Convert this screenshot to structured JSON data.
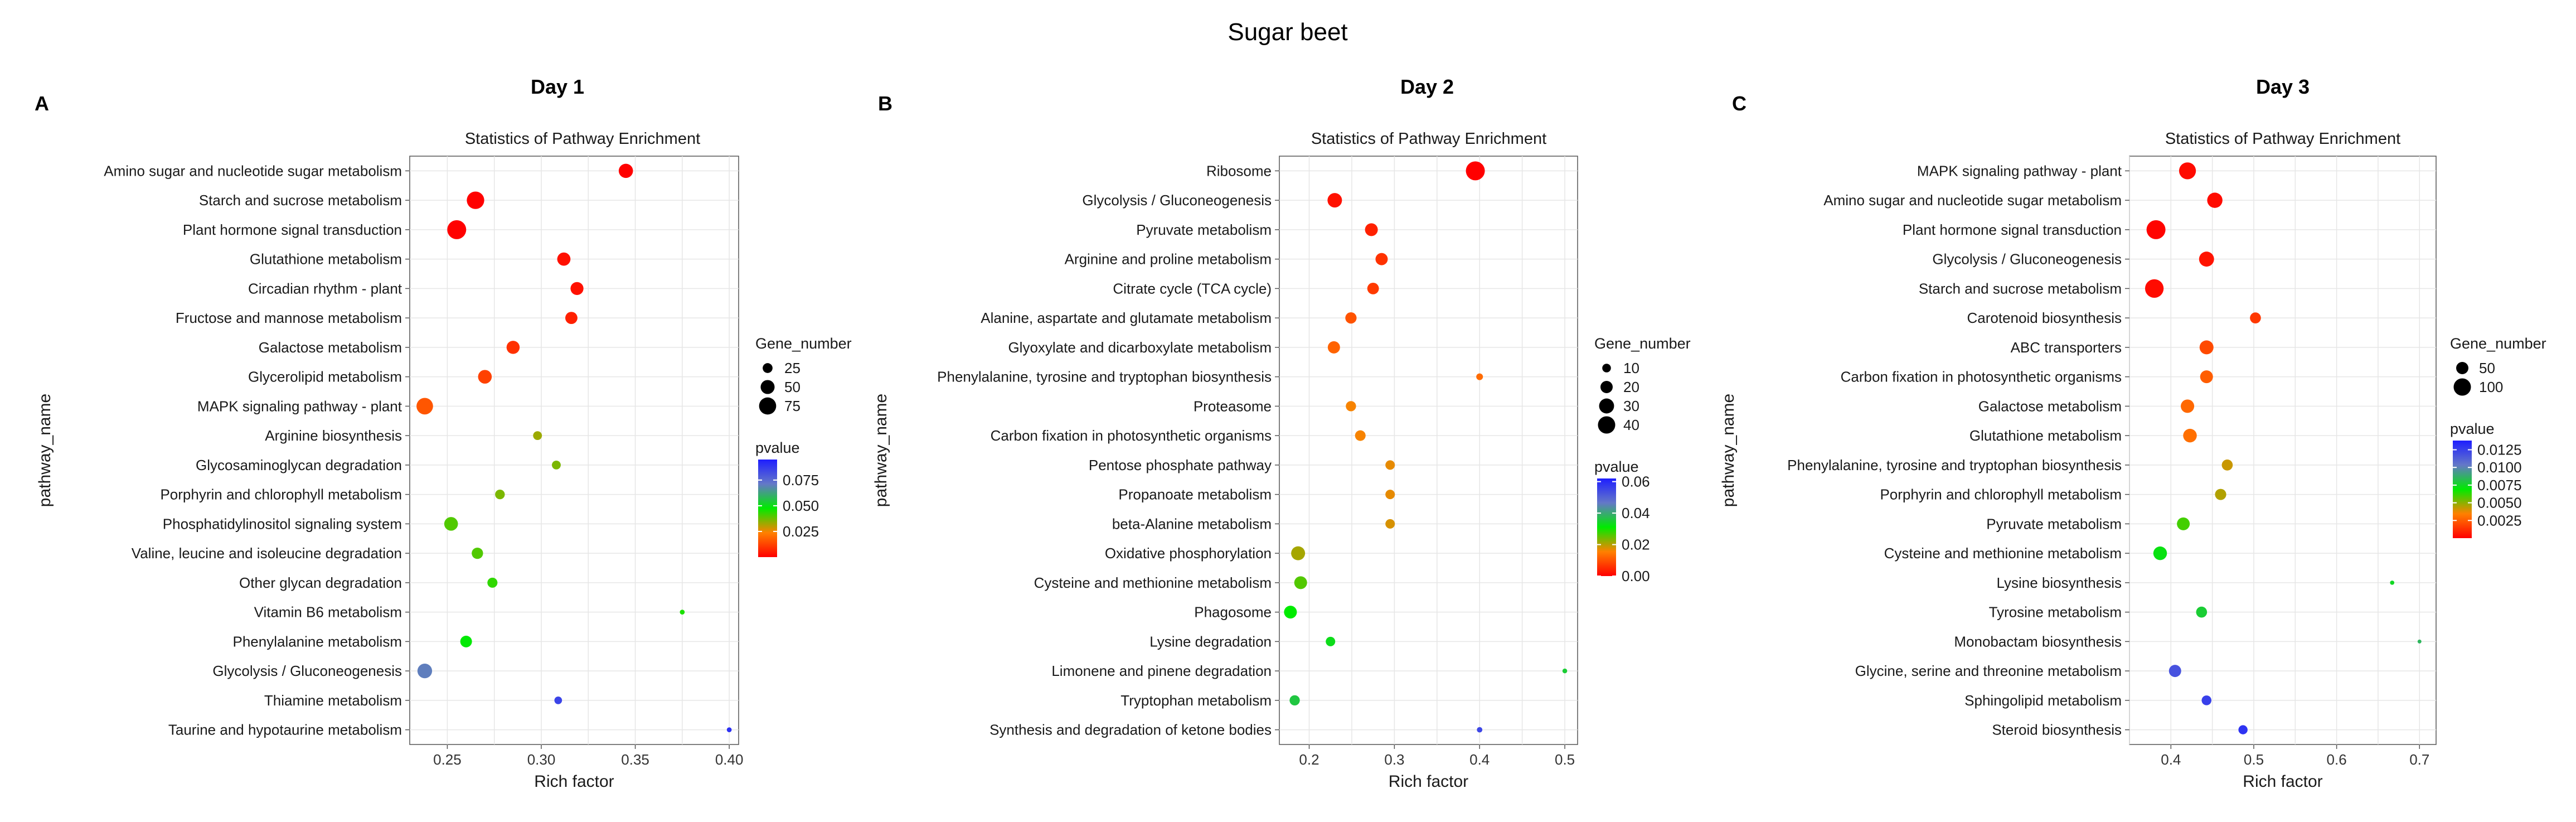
{
  "title": "Sugar beet",
  "chart_data": [
    {
      "type": "scatter",
      "panel_letter": "A",
      "day_label": "Day 1",
      "title": "Statistics of Pathway Enrichment",
      "xlabel": "Rich factor",
      "ylabel": "pathway_name",
      "xlim": [
        0.23,
        0.405
      ],
      "xticks": [
        0.25,
        0.3,
        0.35,
        0.4
      ],
      "xtick_labels": [
        "0.25",
        "0.30",
        "0.35",
        "0.40"
      ],
      "size_legend": {
        "title": "Gene_number",
        "values": [
          25,
          50,
          75
        ],
        "labels": [
          "25",
          "50",
          "75"
        ]
      },
      "color_legend": {
        "title": "pvalue",
        "range": [
          0.0,
          0.095
        ],
        "ticks": [
          0.025,
          0.05,
          0.075
        ],
        "labels": [
          "0.025",
          "0.050",
          "0.075"
        ]
      },
      "points": [
        {
          "pathway": "Amino sugar and nucleotide sugar metabolism",
          "rich_factor": 0.345,
          "gene_number": 52,
          "pvalue": 0.0002
        },
        {
          "pathway": "Starch and sucrose metabolism",
          "rich_factor": 0.265,
          "gene_number": 78,
          "pvalue": 0.0002
        },
        {
          "pathway": "Plant hormone signal transduction",
          "rich_factor": 0.255,
          "gene_number": 92,
          "pvalue": 0.0001
        },
        {
          "pathway": "Glutathione metabolism",
          "rich_factor": 0.312,
          "gene_number": 45,
          "pvalue": 0.003
        },
        {
          "pathway": "Circadian rhythm - plant",
          "rich_factor": 0.319,
          "gene_number": 43,
          "pvalue": 0.003
        },
        {
          "pathway": "Fructose and mannose metabolism",
          "rich_factor": 0.316,
          "gene_number": 38,
          "pvalue": 0.006
        },
        {
          "pathway": "Galactose metabolism",
          "rich_factor": 0.285,
          "gene_number": 44,
          "pvalue": 0.009
        },
        {
          "pathway": "Glycerolipid metabolism",
          "rich_factor": 0.27,
          "gene_number": 48,
          "pvalue": 0.012
        },
        {
          "pathway": "MAPK signaling pathway - plant",
          "rich_factor": 0.238,
          "gene_number": 70,
          "pvalue": 0.016
        },
        {
          "pathway": "Arginine biosynthesis",
          "rich_factor": 0.298,
          "gene_number": 20,
          "pvalue": 0.033
        },
        {
          "pathway": "Glycosaminoglycan degradation",
          "rich_factor": 0.308,
          "gene_number": 20,
          "pvalue": 0.036
        },
        {
          "pathway": "Porphyrin and chlorophyll metabolism",
          "rich_factor": 0.278,
          "gene_number": 24,
          "pvalue": 0.036
        },
        {
          "pathway": "Phosphatidylinositol signaling system",
          "rich_factor": 0.252,
          "gene_number": 48,
          "pvalue": 0.04
        },
        {
          "pathway": "Valine, leucine and isoleucine degradation",
          "rich_factor": 0.266,
          "gene_number": 33,
          "pvalue": 0.04
        },
        {
          "pathway": "Other glycan degradation",
          "rich_factor": 0.274,
          "gene_number": 26,
          "pvalue": 0.043
        },
        {
          "pathway": "Vitamin B6 metabolism",
          "rich_factor": 0.375,
          "gene_number": 6,
          "pvalue": 0.045
        },
        {
          "pathway": "Phenylalanine metabolism",
          "rich_factor": 0.26,
          "gene_number": 35,
          "pvalue": 0.048
        },
        {
          "pathway": "Glycolysis / Gluconeogenesis",
          "rich_factor": 0.238,
          "gene_number": 55,
          "pvalue": 0.07
        },
        {
          "pathway": "Thiamine metabolism",
          "rich_factor": 0.309,
          "gene_number": 15,
          "pvalue": 0.085
        },
        {
          "pathway": "Taurine and hypotaurine metabolism",
          "rich_factor": 0.4,
          "gene_number": 6,
          "pvalue": 0.09
        }
      ]
    },
    {
      "type": "scatter",
      "panel_letter": "B",
      "day_label": "Day 2",
      "title": "Statistics of Pathway Enrichment",
      "xlabel": "Rich factor",
      "ylabel": "pathway_name",
      "xlim": [
        0.165,
        0.515
      ],
      "xticks": [
        0.2,
        0.3,
        0.4,
        0.5
      ],
      "xtick_labels": [
        "0.2",
        "0.3",
        "0.4",
        "0.5"
      ],
      "size_legend": {
        "title": "Gene_number",
        "values": [
          10,
          20,
          30,
          40
        ],
        "labels": [
          "10",
          "20",
          "30",
          "40"
        ]
      },
      "color_legend": {
        "title": "pvalue",
        "range": [
          0.0,
          0.062
        ],
        "ticks": [
          0.0,
          0.02,
          0.04,
          0.06
        ],
        "labels": [
          "0.00",
          "0.02",
          "0.04",
          "0.06"
        ]
      },
      "points": [
        {
          "pathway": "Ribosome",
          "rich_factor": 0.395,
          "gene_number": 48,
          "pvalue": 0.0
        },
        {
          "pathway": "Glycolysis / Gluconeogenesis",
          "rich_factor": 0.23,
          "gene_number": 28,
          "pvalue": 0.002
        },
        {
          "pathway": "Pyruvate metabolism",
          "rich_factor": 0.273,
          "gene_number": 22,
          "pvalue": 0.004
        },
        {
          "pathway": "Arginine and proline metabolism",
          "rich_factor": 0.285,
          "gene_number": 20,
          "pvalue": 0.006
        },
        {
          "pathway": "Citrate cycle (TCA cycle)",
          "rich_factor": 0.275,
          "gene_number": 18,
          "pvalue": 0.007
        },
        {
          "pathway": "Alanine, aspartate and glutamate metabolism",
          "rich_factor": 0.249,
          "gene_number": 17,
          "pvalue": 0.01
        },
        {
          "pathway": "Glyoxylate and dicarboxylate metabolism",
          "rich_factor": 0.229,
          "gene_number": 20,
          "pvalue": 0.012
        },
        {
          "pathway": "Phenylalanine, tyrosine and tryptophan biosynthesis",
          "rich_factor": 0.4,
          "gene_number": 6,
          "pvalue": 0.013
        },
        {
          "pathway": "Proteasome",
          "rich_factor": 0.249,
          "gene_number": 14,
          "pvalue": 0.016
        },
        {
          "pathway": "Carbon fixation in photosynthetic organisms",
          "rich_factor": 0.26,
          "gene_number": 15,
          "pvalue": 0.016
        },
        {
          "pathway": "Pentose phosphate pathway",
          "rich_factor": 0.295,
          "gene_number": 12,
          "pvalue": 0.017
        },
        {
          "pathway": "Propanoate metabolism",
          "rich_factor": 0.295,
          "gene_number": 12,
          "pvalue": 0.017
        },
        {
          "pathway": "beta-Alanine metabolism",
          "rich_factor": 0.295,
          "gene_number": 12,
          "pvalue": 0.018
        },
        {
          "pathway": "Oxidative phosphorylation",
          "rich_factor": 0.187,
          "gene_number": 26,
          "pvalue": 0.021
        },
        {
          "pathway": "Cysteine and methionine metabolism",
          "rich_factor": 0.19,
          "gene_number": 22,
          "pvalue": 0.026
        },
        {
          "pathway": "Phagosome",
          "rich_factor": 0.178,
          "gene_number": 22,
          "pvalue": 0.031
        },
        {
          "pathway": "Lysine degradation",
          "rich_factor": 0.225,
          "gene_number": 12,
          "pvalue": 0.033
        },
        {
          "pathway": "Limonene and pinene degradation",
          "rich_factor": 0.5,
          "gene_number": 3,
          "pvalue": 0.035
        },
        {
          "pathway": "Tryptophan metabolism",
          "rich_factor": 0.183,
          "gene_number": 14,
          "pvalue": 0.036
        },
        {
          "pathway": "Synthesis and degradation of ketone bodies",
          "rich_factor": 0.4,
          "gene_number": 4,
          "pvalue": 0.055
        }
      ]
    },
    {
      "type": "scatter",
      "panel_letter": "C",
      "day_label": "Day 3",
      "title": "Statistics of Pathway Enrichment",
      "xlabel": "Rich factor",
      "ylabel": "pathway_name",
      "xlim": [
        0.35,
        0.72
      ],
      "xticks": [
        0.4,
        0.5,
        0.6,
        0.7
      ],
      "xtick_labels": [
        "0.4",
        "0.5",
        "0.6",
        "0.7"
      ],
      "size_legend": {
        "title": "Gene_number",
        "values": [
          50,
          100
        ],
        "labels": [
          "50",
          "100"
        ]
      },
      "color_legend": {
        "title": "pvalue",
        "range": [
          0.0,
          0.0138
        ],
        "ticks": [
          0.0025,
          0.005,
          0.0075,
          0.01,
          0.0125
        ],
        "labels": [
          "0.0025",
          "0.0050",
          "0.0075",
          "0.0100",
          "0.0125"
        ]
      },
      "points": [
        {
          "pathway": "MAPK signaling pathway - plant",
          "rich_factor": 0.42,
          "gene_number": 95,
          "pvalue": 0.0003
        },
        {
          "pathway": "Amino sugar and nucleotide sugar metabolism",
          "rich_factor": 0.453,
          "gene_number": 78,
          "pvalue": 0.0003
        },
        {
          "pathway": "Plant hormone signal transduction",
          "rich_factor": 0.382,
          "gene_number": 120,
          "pvalue": 0.0001
        },
        {
          "pathway": "Glycolysis / Gluconeogenesis",
          "rich_factor": 0.443,
          "gene_number": 75,
          "pvalue": 0.0005
        },
        {
          "pathway": "Starch and sucrose metabolism",
          "rich_factor": 0.38,
          "gene_number": 115,
          "pvalue": 0.0003
        },
        {
          "pathway": "Carotenoid biosynthesis",
          "rich_factor": 0.502,
          "gene_number": 40,
          "pvalue": 0.0015
        },
        {
          "pathway": "ABC transporters",
          "rich_factor": 0.443,
          "gene_number": 65,
          "pvalue": 0.002
        },
        {
          "pathway": "Carbon fixation in photosynthetic organisms",
          "rich_factor": 0.443,
          "gene_number": 55,
          "pvalue": 0.0025
        },
        {
          "pathway": "Galactose metabolism",
          "rich_factor": 0.42,
          "gene_number": 60,
          "pvalue": 0.0028
        },
        {
          "pathway": "Glutathione metabolism",
          "rich_factor": 0.423,
          "gene_number": 62,
          "pvalue": 0.003
        },
        {
          "pathway": "Phenylalanine, tyrosine and tryptophan biosynthesis",
          "rich_factor": 0.468,
          "gene_number": 40,
          "pvalue": 0.0042
        },
        {
          "pathway": "Porphyrin and chlorophyll metabolism",
          "rich_factor": 0.46,
          "gene_number": 42,
          "pvalue": 0.0045
        },
        {
          "pathway": "Pyruvate metabolism",
          "rich_factor": 0.415,
          "gene_number": 55,
          "pvalue": 0.006
        },
        {
          "pathway": "Cysteine and methionine metabolism",
          "rich_factor": 0.387,
          "gene_number": 62,
          "pvalue": 0.0072
        },
        {
          "pathway": "Lysine biosynthesis",
          "rich_factor": 0.667,
          "gene_number": 6,
          "pvalue": 0.0075
        },
        {
          "pathway": "Tyrosine metabolism",
          "rich_factor": 0.437,
          "gene_number": 40,
          "pvalue": 0.0078
        },
        {
          "pathway": "Monobactam biosynthesis",
          "rich_factor": 0.7,
          "gene_number": 5,
          "pvalue": 0.0085
        },
        {
          "pathway": "Glycine, serine and threonine metabolism",
          "rich_factor": 0.405,
          "gene_number": 50,
          "pvalue": 0.0118
        },
        {
          "pathway": "Sphingolipid metabolism",
          "rich_factor": 0.443,
          "gene_number": 32,
          "pvalue": 0.0125
        },
        {
          "pathway": "Steroid biosynthesis",
          "rich_factor": 0.487,
          "gene_number": 28,
          "pvalue": 0.013
        }
      ]
    }
  ]
}
